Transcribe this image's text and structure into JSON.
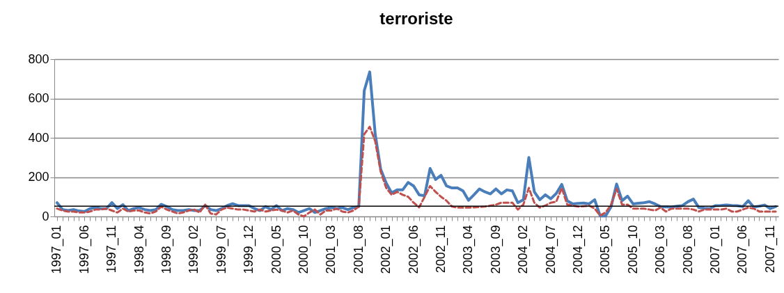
{
  "chart_data": {
    "type": "line",
    "title": "terroriste",
    "categories": [
      "1997_01",
      null,
      null,
      null,
      null,
      "1997_06",
      null,
      null,
      null,
      null,
      "1997_11",
      null,
      null,
      null,
      null,
      "1998_04",
      null,
      null,
      null,
      null,
      "1998_09",
      null,
      null,
      null,
      null,
      "1999_02",
      null,
      null,
      null,
      null,
      "1999_07",
      null,
      null,
      null,
      null,
      "1999_12",
      null,
      null,
      null,
      null,
      "2000_05",
      null,
      null,
      null,
      null,
      "2000_10",
      null,
      null,
      null,
      null,
      "2001_03",
      null,
      null,
      null,
      null,
      "2001_08",
      null,
      null,
      null,
      null,
      "2002_01",
      null,
      null,
      null,
      null,
      "2002_06",
      null,
      null,
      null,
      null,
      "2002_11",
      null,
      null,
      null,
      null,
      "2003_04",
      null,
      null,
      null,
      null,
      "2003_09",
      null,
      null,
      null,
      null,
      "2004_02",
      null,
      null,
      null,
      null,
      "2004_07",
      null,
      null,
      null,
      null,
      "2004_12",
      null,
      null,
      null,
      null,
      "2005_05",
      null,
      null,
      null,
      null,
      "2005_10",
      null,
      null,
      null,
      null,
      "2006_03",
      null,
      null,
      null,
      null,
      "2006_08",
      null,
      null,
      null,
      null,
      "2007_01",
      null,
      null,
      null,
      null,
      "2007_06",
      null,
      null,
      null,
      null,
      "2007_11",
      null
    ],
    "series": [
      {
        "color": "#4a7ebb",
        "line_style": "solid",
        "values": [
          70,
          35,
          30,
          35,
          28,
          25,
          40,
          45,
          40,
          40,
          70,
          40,
          60,
          30,
          40,
          45,
          35,
          30,
          35,
          62,
          50,
          35,
          30,
          30,
          35,
          30,
          30,
          55,
          35,
          30,
          40,
          55,
          65,
          55,
          55,
          55,
          40,
          30,
          50,
          35,
          55,
          30,
          40,
          35,
          20,
          30,
          40,
          20,
          30,
          40,
          45,
          40,
          45,
          35,
          45,
          50,
          640,
          735,
          418,
          240,
          170,
          120,
          135,
          135,
          173,
          155,
          110,
          105,
          244,
          188,
          209,
          155,
          145,
          145,
          130,
          82,
          110,
          140,
          125,
          115,
          140,
          115,
          135,
          130,
          70,
          85,
          300,
          125,
          85,
          110,
          90,
          117,
          163,
          80,
          64,
          66,
          68,
          64,
          85,
          3,
          3,
          50,
          165,
          80,
          103,
          64,
          67,
          70,
          75,
          64,
          50,
          49,
          48,
          52,
          55,
          75,
          88,
          45,
          42,
          40,
          55,
          56,
          58,
          56,
          55,
          50,
          80,
          48,
          52,
          58,
          40,
          50
        ]
      },
      {
        "color": "#c0504d",
        "line_style": "dashed",
        "values": [
          40,
          30,
          25,
          25,
          20,
          20,
          25,
          35,
          35,
          40,
          30,
          20,
          40,
          25,
          30,
          30,
          20,
          15,
          25,
          50,
          35,
          25,
          15,
          20,
          30,
          35,
          20,
          60,
          15,
          10,
          35,
          45,
          40,
          35,
          35,
          30,
          25,
          35,
          25,
          30,
          35,
          30,
          20,
          30,
          10,
          0,
          20,
          35,
          10,
          30,
          30,
          40,
          25,
          20,
          30,
          50,
          418,
          456,
          382,
          227,
          145,
          110,
          125,
          110,
          100,
          70,
          46,
          100,
          155,
          125,
          100,
          80,
          50,
          45,
          45,
          45,
          46,
          48,
          50,
          55,
          60,
          70,
          70,
          70,
          35,
          60,
          145,
          70,
          45,
          55,
          70,
          75,
          145,
          60,
          55,
          50,
          52,
          55,
          40,
          5,
          20,
          60,
          140,
          60,
          60,
          40,
          40,
          40,
          35,
          30,
          45,
          25,
          40,
          40,
          40,
          40,
          35,
          25,
          35,
          35,
          35,
          35,
          40,
          25,
          25,
          35,
          45,
          40,
          25,
          25,
          25,
          25
        ]
      }
    ],
    "ylim": [
      0,
      800
    ],
    "yticks": [
      0,
      200,
      400,
      600,
      800
    ],
    "grid": "y",
    "marker": "none",
    "ref_lines": [
      {
        "axis": "y",
        "value": 52,
        "color": "#000000"
      }
    ]
  }
}
